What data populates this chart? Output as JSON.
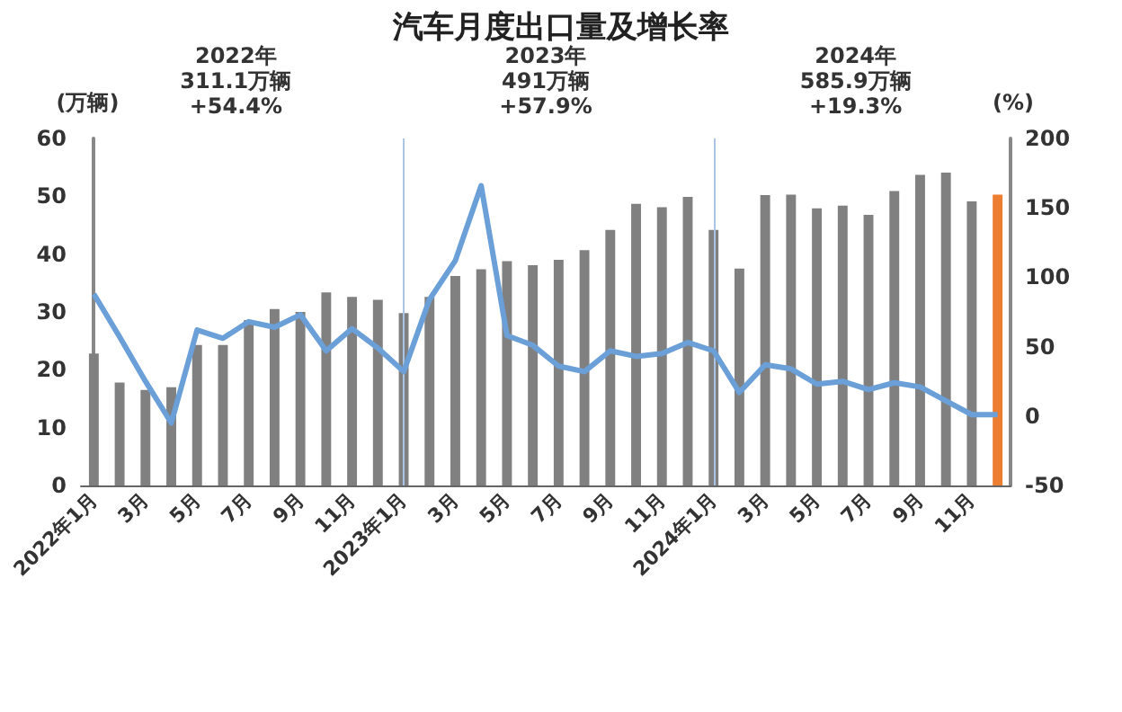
{
  "chart_data": {
    "type": "bar",
    "title": "汽车月度出口量及增长率",
    "ylabel": "(万辆)",
    "y2label": "(%)",
    "categories": [
      "2022年1月",
      null,
      "3月",
      null,
      "5月",
      null,
      "7月",
      null,
      "9月",
      null,
      "11月",
      null,
      "2023年1月",
      null,
      "3月",
      null,
      "5月",
      null,
      "7月",
      null,
      "9月",
      null,
      "11月",
      null,
      "2024年1月",
      null,
      "3月",
      null,
      "5月",
      null,
      "7月",
      null,
      "9月",
      null,
      "11月",
      null
    ],
    "series": [
      {
        "colors": [
          "#808080",
          "#808080",
          "#808080",
          "#808080",
          "#808080",
          "#808080",
          "#808080",
          "#808080",
          "#808080",
          "#808080",
          "#808080",
          "#808080",
          "#808080",
          "#808080",
          "#808080",
          "#808080",
          "#808080",
          "#808080",
          "#808080",
          "#808080",
          "#808080",
          "#808080",
          "#808080",
          "#808080",
          "#808080",
          "#808080",
          "#808080",
          "#808080",
          "#808080",
          "#808080",
          "#808080",
          "#808080",
          "#808080",
          "#808080",
          "#808080",
          "#ed7d31"
        ],
        "values": [
          22.8,
          17.8,
          16.5,
          17,
          24.3,
          24.3,
          28.6,
          30.5,
          30,
          33.4,
          32.6,
          32.1,
          29.8,
          32.6,
          36.2,
          37.4,
          38.8,
          38.1,
          39,
          40.7,
          44.2,
          48.7,
          48.1,
          49.9,
          44.2,
          37.5,
          50.2,
          50.3,
          47.9,
          48.4,
          46.8,
          50.9,
          53.7,
          54.1,
          49.1,
          50.3
        ]
      },
      {
        "type": "line",
        "axis": "y2",
        "color": "#6a9fd8",
        "values": [
          88,
          57,
          25,
          -5,
          62,
          56,
          68,
          64,
          73,
          47,
          63,
          49,
          32,
          84,
          112,
          166,
          58,
          51,
          36,
          32,
          47,
          43,
          45,
          53,
          47,
          17,
          37,
          34,
          23,
          25,
          19,
          24,
          21,
          11,
          1,
          1
        ]
      }
    ],
    "ylim": [
      0,
      60
    ],
    "yticks": [
      0,
      10,
      20,
      30,
      40,
      50,
      60
    ],
    "y2lim": [
      -50,
      200
    ],
    "y2ticks": [
      -50,
      0,
      50,
      100,
      150,
      200
    ],
    "ref_lines": [
      {
        "axis": "x",
        "value": "2023年1月",
        "color": "#a9c4e4"
      },
      {
        "axis": "x",
        "value": "2024年1月",
        "color": "#a9c4e4"
      }
    ],
    "annotations": [
      "2022年\n311.1万辆\n+54.4%",
      "2023年\n491万辆\n+57.9%",
      "2024年\n585.9万辆\n+19.3%"
    ],
    "marker": "none",
    "grid": false
  }
}
